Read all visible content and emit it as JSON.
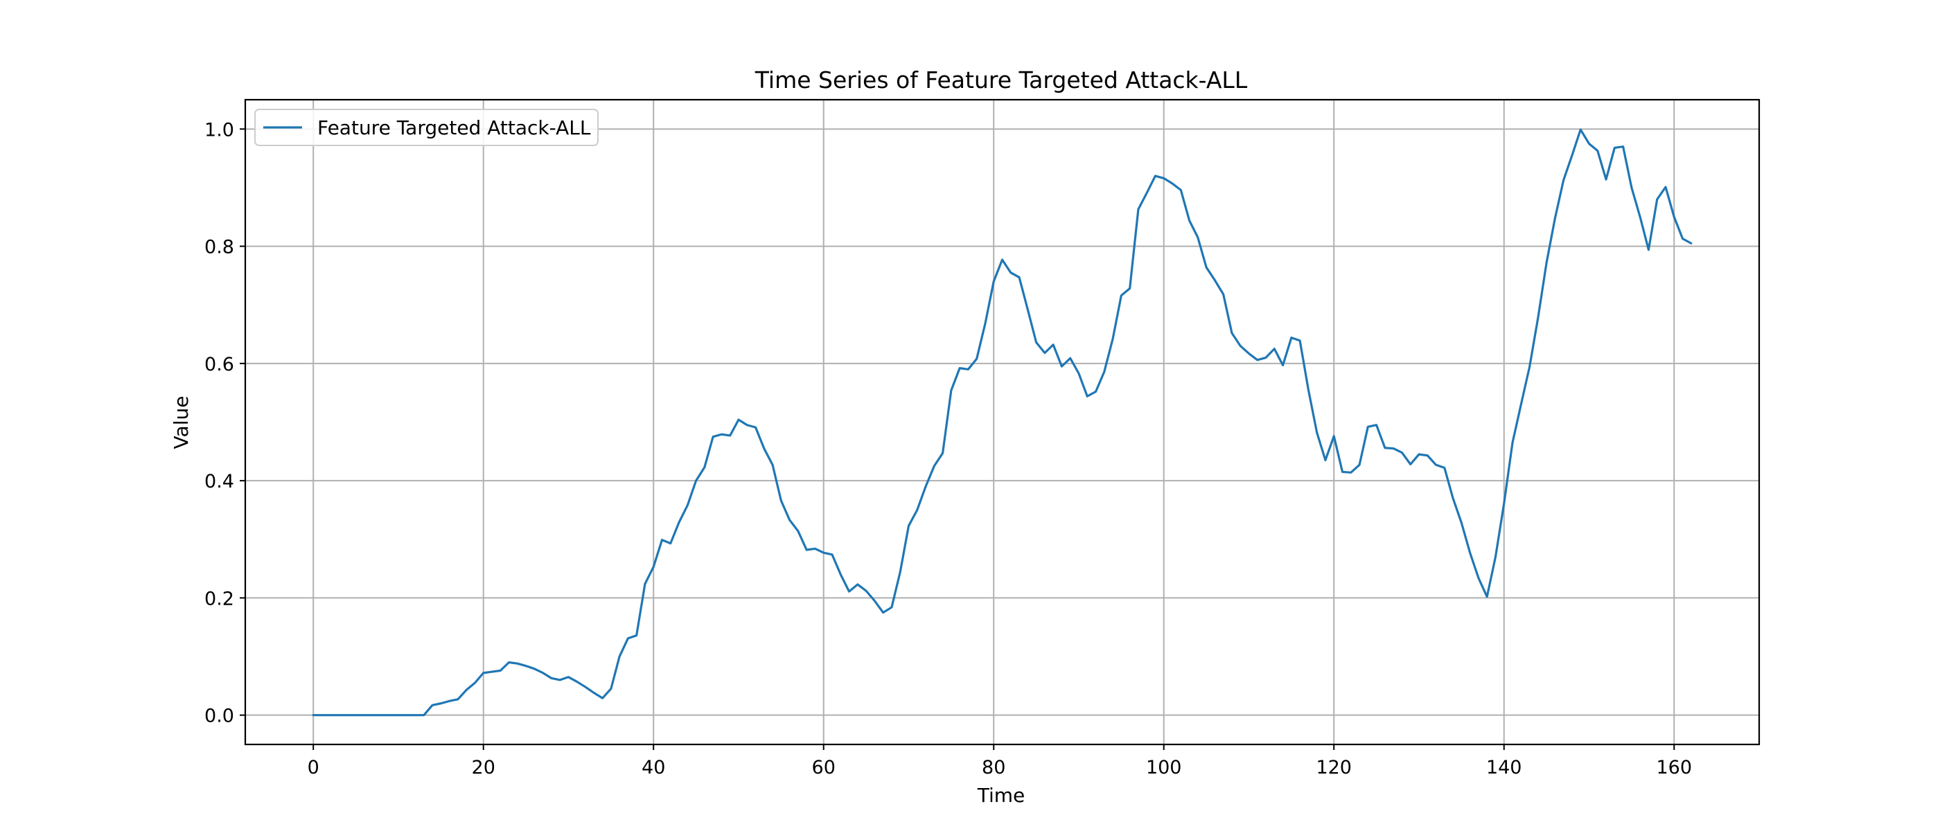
{
  "chart_data": {
    "type": "line",
    "title": "Time Series of Feature Targeted Attack-ALL",
    "xlabel": "Time",
    "ylabel": "Value",
    "xlim": [
      -8,
      170
    ],
    "ylim": [
      -0.05,
      1.05
    ],
    "xticks": [
      0,
      20,
      40,
      60,
      80,
      100,
      120,
      140,
      160
    ],
    "yticks": [
      0.0,
      0.2,
      0.4,
      0.6,
      0.8,
      1.0
    ],
    "ytick_labels": [
      "0.0",
      "0.2",
      "0.4",
      "0.6",
      "0.8",
      "1.0"
    ],
    "grid": true,
    "legend_position": "upper-left",
    "series": [
      {
        "name": "Feature Targeted Attack-ALL",
        "color": "#1f77b4",
        "values": [
          0,
          0,
          0,
          0,
          0,
          0,
          0,
          0,
          0,
          0,
          0,
          0,
          0,
          0,
          0.017,
          0.02,
          0.024,
          0.027,
          0.043,
          0.055,
          0.072,
          0.074,
          0.076,
          0.09,
          0.088,
          0.084,
          0.079,
          0.072,
          0.063,
          0.06,
          0.065,
          0.057,
          0.048,
          0.038,
          0.029,
          0.045,
          0.1,
          0.131,
          0.136,
          0.224,
          0.253,
          0.299,
          0.293,
          0.329,
          0.358,
          0.4,
          0.423,
          0.475,
          0.479,
          0.477,
          0.504,
          0.495,
          0.491,
          0.455,
          0.427,
          0.366,
          0.333,
          0.314,
          0.282,
          0.284,
          0.277,
          0.274,
          0.24,
          0.211,
          0.223,
          0.212,
          0.195,
          0.175,
          0.184,
          0.244,
          0.323,
          0.35,
          0.39,
          0.425,
          0.447,
          0.554,
          0.592,
          0.59,
          0.608,
          0.668,
          0.74,
          0.777,
          0.755,
          0.747,
          0.692,
          0.636,
          0.618,
          0.632,
          0.595,
          0.609,
          0.583,
          0.544,
          0.552,
          0.586,
          0.642,
          0.716,
          0.728,
          0.863,
          0.891,
          0.92,
          0.916,
          0.907,
          0.896,
          0.844,
          0.815,
          0.764,
          0.742,
          0.718,
          0.652,
          0.63,
          0.617,
          0.606,
          0.61,
          0.625,
          0.597,
          0.644,
          0.639,
          0.555,
          0.482,
          0.435,
          0.476,
          0.415,
          0.414,
          0.427,
          0.492,
          0.495,
          0.456,
          0.455,
          0.448,
          0.428,
          0.445,
          0.443,
          0.427,
          0.422,
          0.37,
          0.328,
          0.277,
          0.234,
          0.202,
          0.27,
          0.361,
          0.465,
          0.53,
          0.594,
          0.678,
          0.772,
          0.848,
          0.913,
          0.955,
          0.999,
          0.975,
          0.963,
          0.914,
          0.968,
          0.97,
          0.9,
          0.85,
          0.794,
          0.88,
          0.901,
          0.85,
          0.813,
          0.805
        ]
      }
    ]
  }
}
